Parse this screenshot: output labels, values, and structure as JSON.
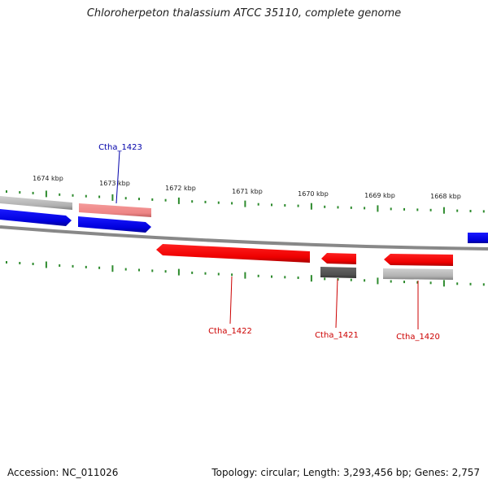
{
  "title": "Chloroherpeton thalassium ATCC 35110, complete genome",
  "accession": "Accession: NC_011026",
  "summary": "Topology: circular; Length: 3,293,456 bp; Genes: 2,757",
  "ruler": {
    "labels": [
      "1674 kbp",
      "1673 kbp",
      "1672 kbp",
      "1671 kbp",
      "1670 kbp",
      "1669 kbp",
      "1668 kbp"
    ]
  },
  "genes": [
    {
      "label": "Ctha_1423",
      "color": "#0000aa"
    },
    {
      "label": "Ctha_1422",
      "color": "#cc0000"
    },
    {
      "label": "Ctha_1421",
      "color": "#cc0000"
    },
    {
      "label": "Ctha_1420",
      "color": "#cc0000"
    }
  ],
  "colors": {
    "forward_strand": "#0000ee",
    "reverse_strand": "#ee0000",
    "reverse_pale": "#ee8888",
    "gray_feature": "#aaaaaa",
    "dark_gray_feature": "#555555",
    "backbone": "#888888",
    "ticks": "#2e8b2e"
  }
}
